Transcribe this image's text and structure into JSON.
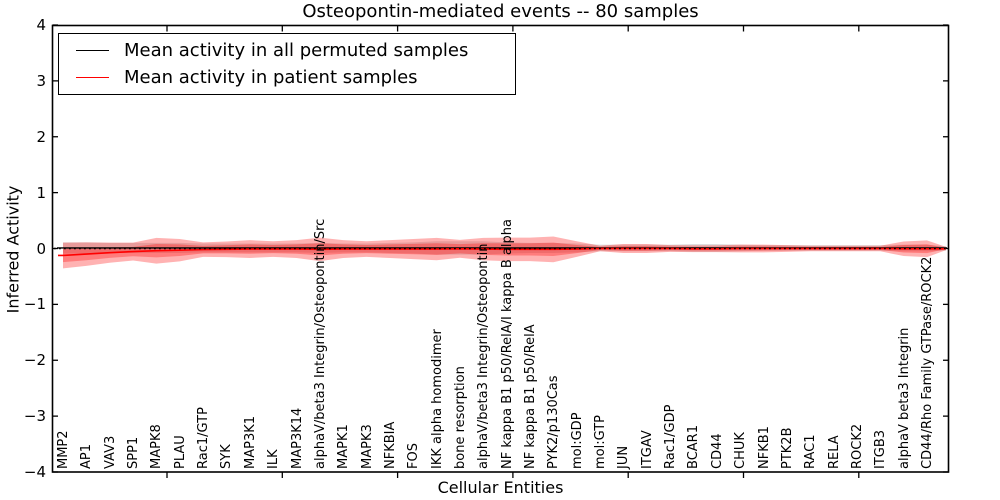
{
  "title": "Osteopontin-mediated events -- 80 samples",
  "chart_data": {
    "type": "line",
    "title": "Osteopontin-mediated events -- 80 samples",
    "xlabel": "Cellular Entities",
    "ylabel": "Inferred Activity",
    "ylim": [
      -4,
      4
    ],
    "yticks": [
      4,
      3,
      2,
      1,
      0,
      -1,
      -2,
      -3,
      -4
    ],
    "grid": false,
    "legend_position": "upper left",
    "zero_reference_line": {
      "style": "dotted",
      "color": "#000000",
      "y": 0
    },
    "categories": [
      "MMP2",
      "AP1",
      "VAV3",
      "SPP1",
      "MAPK8",
      "PLAU",
      "Rac1/GTP",
      "SYK",
      "MAP3K1",
      "ILK",
      "MAP3K14",
      "alphaV/beta3 Integrin/Osteopontin/Src",
      "MAPK1",
      "MAPK3",
      "NFKBIA",
      "FOS",
      "IKK alpha homodimer",
      "bone resorption",
      "alphaV/beta3 Integrin/Osteopontin",
      "NF kappa B1 p50/RelA/I kappa B alpha",
      "NF kappa B1 p50/RelA",
      "PYK2/p130Cas",
      "mol:GDP",
      "mol:GTP",
      "JUN",
      "ITGAV",
      "Rac1/GDP",
      "BCAR1",
      "CD44",
      "CHUK",
      "NFKB1",
      "PTK2B",
      "RAC1",
      "RELA",
      "ROCK2",
      "ITGB3",
      "alphaV beta3 Integrin",
      "CD44/Rho Family GTPase/ROCK2"
    ],
    "series": [
      {
        "name": "Mean activity in all permuted samples",
        "color": "#000000",
        "band_color": "rgba(0,0,0,0.13)",
        "values": [
          0.01,
          0.01,
          0.01,
          0.01,
          0.01,
          0.01,
          0.01,
          0.01,
          0.01,
          0.01,
          0.01,
          0.01,
          0.01,
          0.01,
          0.01,
          0.01,
          0.01,
          0.01,
          0.01,
          0.01,
          0.01,
          0.01,
          0.01,
          0.01,
          0.01,
          0.01,
          0.01,
          0.01,
          0.01,
          0.01,
          0.01,
          0.01,
          0.01,
          0.01,
          0.01,
          0.01,
          0.01,
          0.01
        ],
        "band_halfwidth": [
          0.1,
          0.1,
          0.09,
          0.09,
          0.09,
          0.09,
          0.08,
          0.08,
          0.08,
          0.08,
          0.08,
          0.09,
          0.08,
          0.08,
          0.09,
          0.1,
          0.12,
          0.12,
          0.12,
          0.1,
          0.09,
          0.09,
          0.08,
          0.06,
          0.06,
          0.06,
          0.06,
          0.07,
          0.07,
          0.06,
          0.05,
          0.05,
          0.05,
          0.05,
          0.05,
          0.05,
          0.06,
          0.06
        ]
      },
      {
        "name": "Mean activity in patient samples",
        "color": "#ff0000",
        "band_color": "rgba(255,0,0,0.30)",
        "values": [
          -0.125,
          -0.1,
          -0.075,
          -0.055,
          -0.04,
          -0.03,
          -0.02,
          -0.015,
          -0.01,
          -0.01,
          -0.01,
          -0.015,
          -0.01,
          -0.01,
          -0.01,
          -0.01,
          -0.01,
          -0.005,
          -0.01,
          -0.015,
          -0.015,
          -0.015,
          -0.01,
          0,
          0,
          0,
          0,
          -0.005,
          -0.005,
          0,
          0,
          0,
          0,
          0,
          0,
          0,
          -0.005,
          -0.005
        ],
        "band_halfwidth": [
          0.23,
          0.21,
          0.18,
          0.16,
          0.23,
          0.2,
          0.13,
          0.14,
          0.16,
          0.14,
          0.16,
          0.21,
          0.16,
          0.14,
          0.16,
          0.18,
          0.2,
          0.16,
          0.2,
          0.21,
          0.21,
          0.23,
          0.14,
          0.05,
          0.08,
          0.08,
          0.06,
          0.06,
          0.06,
          0.07,
          0.07,
          0.06,
          0.05,
          0.05,
          0.05,
          0.05,
          0.13,
          0.15
        ]
      }
    ]
  },
  "legend": {
    "items": [
      {
        "label": "Mean activity in all permuted samples",
        "color": "#000000"
      },
      {
        "label": "Mean activity in patient samples",
        "color": "#ff0000"
      }
    ]
  }
}
